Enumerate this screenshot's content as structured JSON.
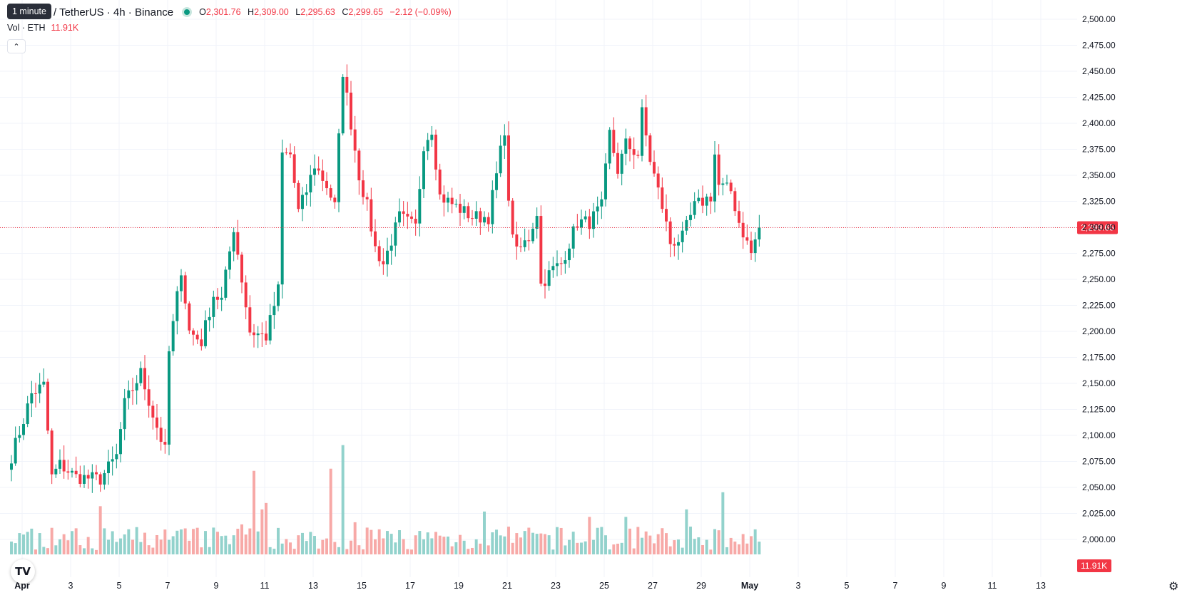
{
  "tooltip": "1 minute",
  "header": {
    "symbol_title": "um / TetherUS · 4h · Binance",
    "o_label": "O",
    "o_value": "2,301.76",
    "h_label": "H",
    "h_value": "2,309.00",
    "l_label": "L",
    "l_value": "2,295.63",
    "c_label": "C",
    "c_value": "2,299.65",
    "change": "−2.12 (−0.09%)"
  },
  "volume_legend": {
    "label": "Vol · ETH",
    "value": "11.91K"
  },
  "collapse_icon": "chevron-up-icon",
  "logo_text": "TV",
  "settings_icon": "gear-icon",
  "colors": {
    "up": "#089981",
    "down": "#f23645",
    "up_vol": "#92d2cc",
    "down_vol": "#f7a9a7",
    "grid": "#f0f3fa"
  },
  "chart_data": {
    "type": "candlestick",
    "symbol": "um / TetherUS",
    "interval": "4h",
    "exchange": "Binance",
    "ylim": [
      1975,
      2510
    ],
    "yticks": [
      "2,500.00",
      "2,475.00",
      "2,450.00",
      "2,425.00",
      "2,400.00",
      "2,375.00",
      "2,350.00",
      "2,325.00",
      "2,300.00",
      "2,275.00",
      "2,250.00",
      "2,225.00",
      "2,200.00",
      "2,175.00",
      "2,150.00",
      "2,125.00",
      "2,100.00",
      "2,075.00",
      "2,050.00",
      "2,025.00",
      "2,000.00"
    ],
    "xticks": [
      {
        "label": "Apr",
        "bold": true,
        "day": 1
      },
      {
        "label": "3",
        "bold": false,
        "day": 3
      },
      {
        "label": "5",
        "bold": false,
        "day": 5
      },
      {
        "label": "7",
        "bold": false,
        "day": 7
      },
      {
        "label": "9",
        "bold": false,
        "day": 9
      },
      {
        "label": "11",
        "bold": false,
        "day": 11
      },
      {
        "label": "13",
        "bold": false,
        "day": 13
      },
      {
        "label": "15",
        "bold": false,
        "day": 15
      },
      {
        "label": "17",
        "bold": false,
        "day": 17
      },
      {
        "label": "19",
        "bold": false,
        "day": 19
      },
      {
        "label": "21",
        "bold": false,
        "day": 21
      },
      {
        "label": "23",
        "bold": false,
        "day": 23
      },
      {
        "label": "25",
        "bold": false,
        "day": 25
      },
      {
        "label": "27",
        "bold": false,
        "day": 27
      },
      {
        "label": "29",
        "bold": false,
        "day": 29
      },
      {
        "label": "May",
        "bold": true,
        "day": 31
      },
      {
        "label": "3",
        "bold": false,
        "day": 33
      },
      {
        "label": "5",
        "bold": false,
        "day": 35
      },
      {
        "label": "7",
        "bold": false,
        "day": 37
      },
      {
        "label": "9",
        "bold": false,
        "day": 39
      },
      {
        "label": "11",
        "bold": false,
        "day": 41
      },
      {
        "label": "13",
        "bold": false,
        "day": 43
      }
    ],
    "first_candle_day": 0.5,
    "candles_per_day": 6,
    "last_price": 2299.65,
    "last_price_label": "2,299.65",
    "volume_label": "11.91K",
    "anchors": [
      [
        0,
        2080
      ],
      [
        3,
        2115
      ],
      [
        5,
        2140
      ],
      [
        8,
        2148
      ],
      [
        10,
        2060
      ],
      [
        12,
        2072
      ],
      [
        16,
        2060
      ],
      [
        22,
        2058
      ],
      [
        26,
        2080
      ],
      [
        28,
        2130
      ],
      [
        32,
        2160
      ],
      [
        35,
        2120
      ],
      [
        38,
        2085
      ],
      [
        39,
        2180
      ],
      [
        42,
        2260
      ],
      [
        44,
        2200
      ],
      [
        47,
        2190
      ],
      [
        50,
        2235
      ],
      [
        52,
        2230
      ],
      [
        55,
        2300
      ],
      [
        59,
        2200
      ],
      [
        63,
        2195
      ],
      [
        66,
        2240
      ],
      [
        67,
        2370
      ],
      [
        69,
        2370
      ],
      [
        71,
        2315
      ],
      [
        73,
        2335
      ],
      [
        75,
        2360
      ],
      [
        78,
        2340
      ],
      [
        80,
        2320
      ],
      [
        82,
        2450
      ],
      [
        84,
        2400
      ],
      [
        86,
        2350
      ],
      [
        88,
        2320
      ],
      [
        90,
        2280
      ],
      [
        92,
        2265
      ],
      [
        96,
        2310
      ],
      [
        100,
        2300
      ],
      [
        102,
        2380
      ],
      [
        104,
        2395
      ],
      [
        106,
        2330
      ],
      [
        110,
        2320
      ],
      [
        114,
        2310
      ],
      [
        118,
        2310
      ],
      [
        120,
        2350
      ],
      [
        122,
        2395
      ],
      [
        123,
        2320
      ],
      [
        125,
        2275
      ],
      [
        128,
        2290
      ],
      [
        130,
        2315
      ],
      [
        131,
        2245
      ],
      [
        134,
        2260
      ],
      [
        136,
        2265
      ],
      [
        140,
        2305
      ],
      [
        143,
        2305
      ],
      [
        146,
        2320
      ],
      [
        148,
        2390
      ],
      [
        150,
        2355
      ],
      [
        152,
        2380
      ],
      [
        155,
        2370
      ],
      [
        156,
        2410
      ],
      [
        158,
        2365
      ],
      [
        161,
        2320
      ],
      [
        163,
        2285
      ],
      [
        166,
        2290
      ],
      [
        169,
        2320
      ],
      [
        173,
        2330
      ],
      [
        174,
        2370
      ],
      [
        175,
        2340
      ],
      [
        178,
        2335
      ],
      [
        180,
        2305
      ],
      [
        183,
        2275
      ],
      [
        185,
        2300
      ]
    ],
    "volume_scale": [
      0,
      145000
    ],
    "volume_spikes": [
      [
        60,
        78000
      ],
      [
        79,
        80000
      ],
      [
        82,
        102000
      ],
      [
        63,
        48000
      ],
      [
        62,
        42000
      ],
      [
        85,
        30000
      ],
      [
        88,
        25000
      ],
      [
        117,
        40000
      ],
      [
        176,
        58000
      ],
      [
        167,
        42000
      ],
      [
        143,
        35000
      ],
      [
        152,
        35000
      ],
      [
        22,
        45000
      ],
      [
        57,
        28000
      ]
    ]
  }
}
